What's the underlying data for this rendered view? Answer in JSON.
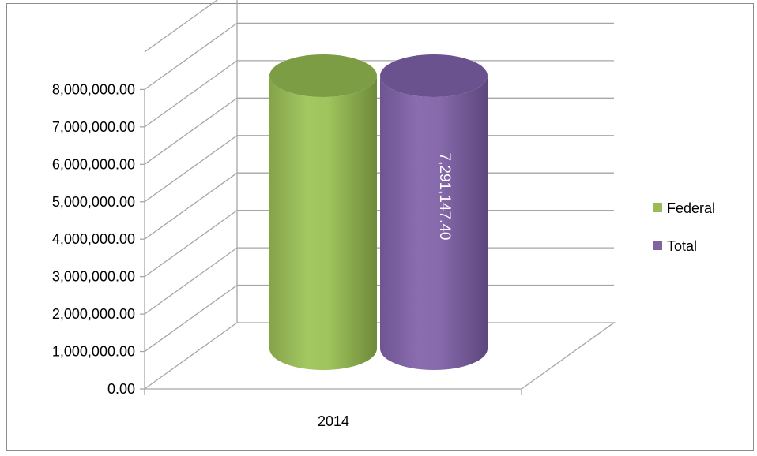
{
  "chart_data": {
    "type": "bar",
    "style": "3d-cylinder",
    "categories": [
      "2014"
    ],
    "series": [
      {
        "name": "Federal",
        "values": [
          7291147.4
        ],
        "color": "#9bbb59",
        "data_label": ""
      },
      {
        "name": "Total",
        "values": [
          7291147.4
        ],
        "color": "#8064a2",
        "data_label": "7,291,147.40"
      }
    ],
    "ylim": [
      0,
      9000000
    ],
    "yticks": [
      {
        "value": 0,
        "label": "0.00"
      },
      {
        "value": 1000000,
        "label": "1,000,000.00"
      },
      {
        "value": 2000000,
        "label": "2,000,000.00"
      },
      {
        "value": 3000000,
        "label": "3,000,000.00"
      },
      {
        "value": 4000000,
        "label": "4,000,000.00"
      },
      {
        "value": 5000000,
        "label": "5,000,000.00"
      },
      {
        "value": 6000000,
        "label": "6,000,000.00"
      },
      {
        "value": 7000000,
        "label": "7,000,000.00"
      },
      {
        "value": 8000000,
        "label": "8,000,000.00"
      }
    ],
    "grid": true,
    "legend_position": "right",
    "title": "",
    "xlabel": "",
    "ylabel": ""
  }
}
